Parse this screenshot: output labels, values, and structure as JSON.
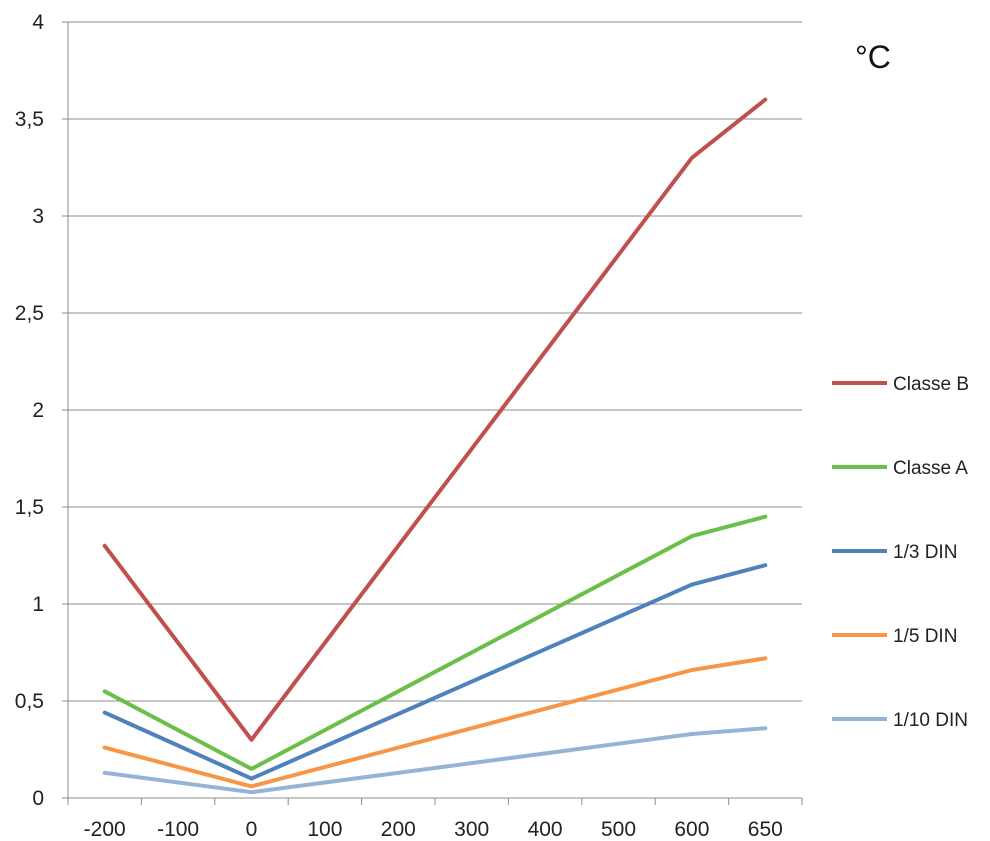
{
  "chart_data": {
    "type": "line",
    "unit_label": "°C",
    "categories": [
      "-200",
      "-100",
      "0",
      "100",
      "200",
      "300",
      "400",
      "500",
      "600",
      "650"
    ],
    "ylim": [
      0,
      4
    ],
    "yticks": [
      "0",
      "0,5",
      "1",
      "1,5",
      "2",
      "2,5",
      "3",
      "3,5",
      "4"
    ],
    "grid": true,
    "legend_position": "right",
    "series": [
      {
        "name": "Classe B",
        "color": "#c0504d",
        "x": [
          -200,
          0,
          600,
          650
        ],
        "values": [
          1.3,
          0.3,
          3.3,
          3.6
        ]
      },
      {
        "name": "Classe A",
        "color": "#6abf4b",
        "x": [
          -200,
          0,
          600,
          650
        ],
        "values": [
          0.55,
          0.15,
          1.35,
          1.45
        ]
      },
      {
        "name": "1/3 DIN",
        "color": "#4f81bd",
        "x": [
          -200,
          0,
          600,
          650
        ],
        "values": [
          0.44,
          0.1,
          1.1,
          1.2
        ]
      },
      {
        "name": "1/5 DIN",
        "color": "#f79646",
        "x": [
          -200,
          0,
          600,
          650
        ],
        "values": [
          0.26,
          0.06,
          0.66,
          0.72
        ]
      },
      {
        "name": "1/10 DIN",
        "color": "#95b3d7",
        "x": [
          -200,
          0,
          600,
          650
        ],
        "values": [
          0.13,
          0.03,
          0.33,
          0.36
        ]
      }
    ]
  }
}
